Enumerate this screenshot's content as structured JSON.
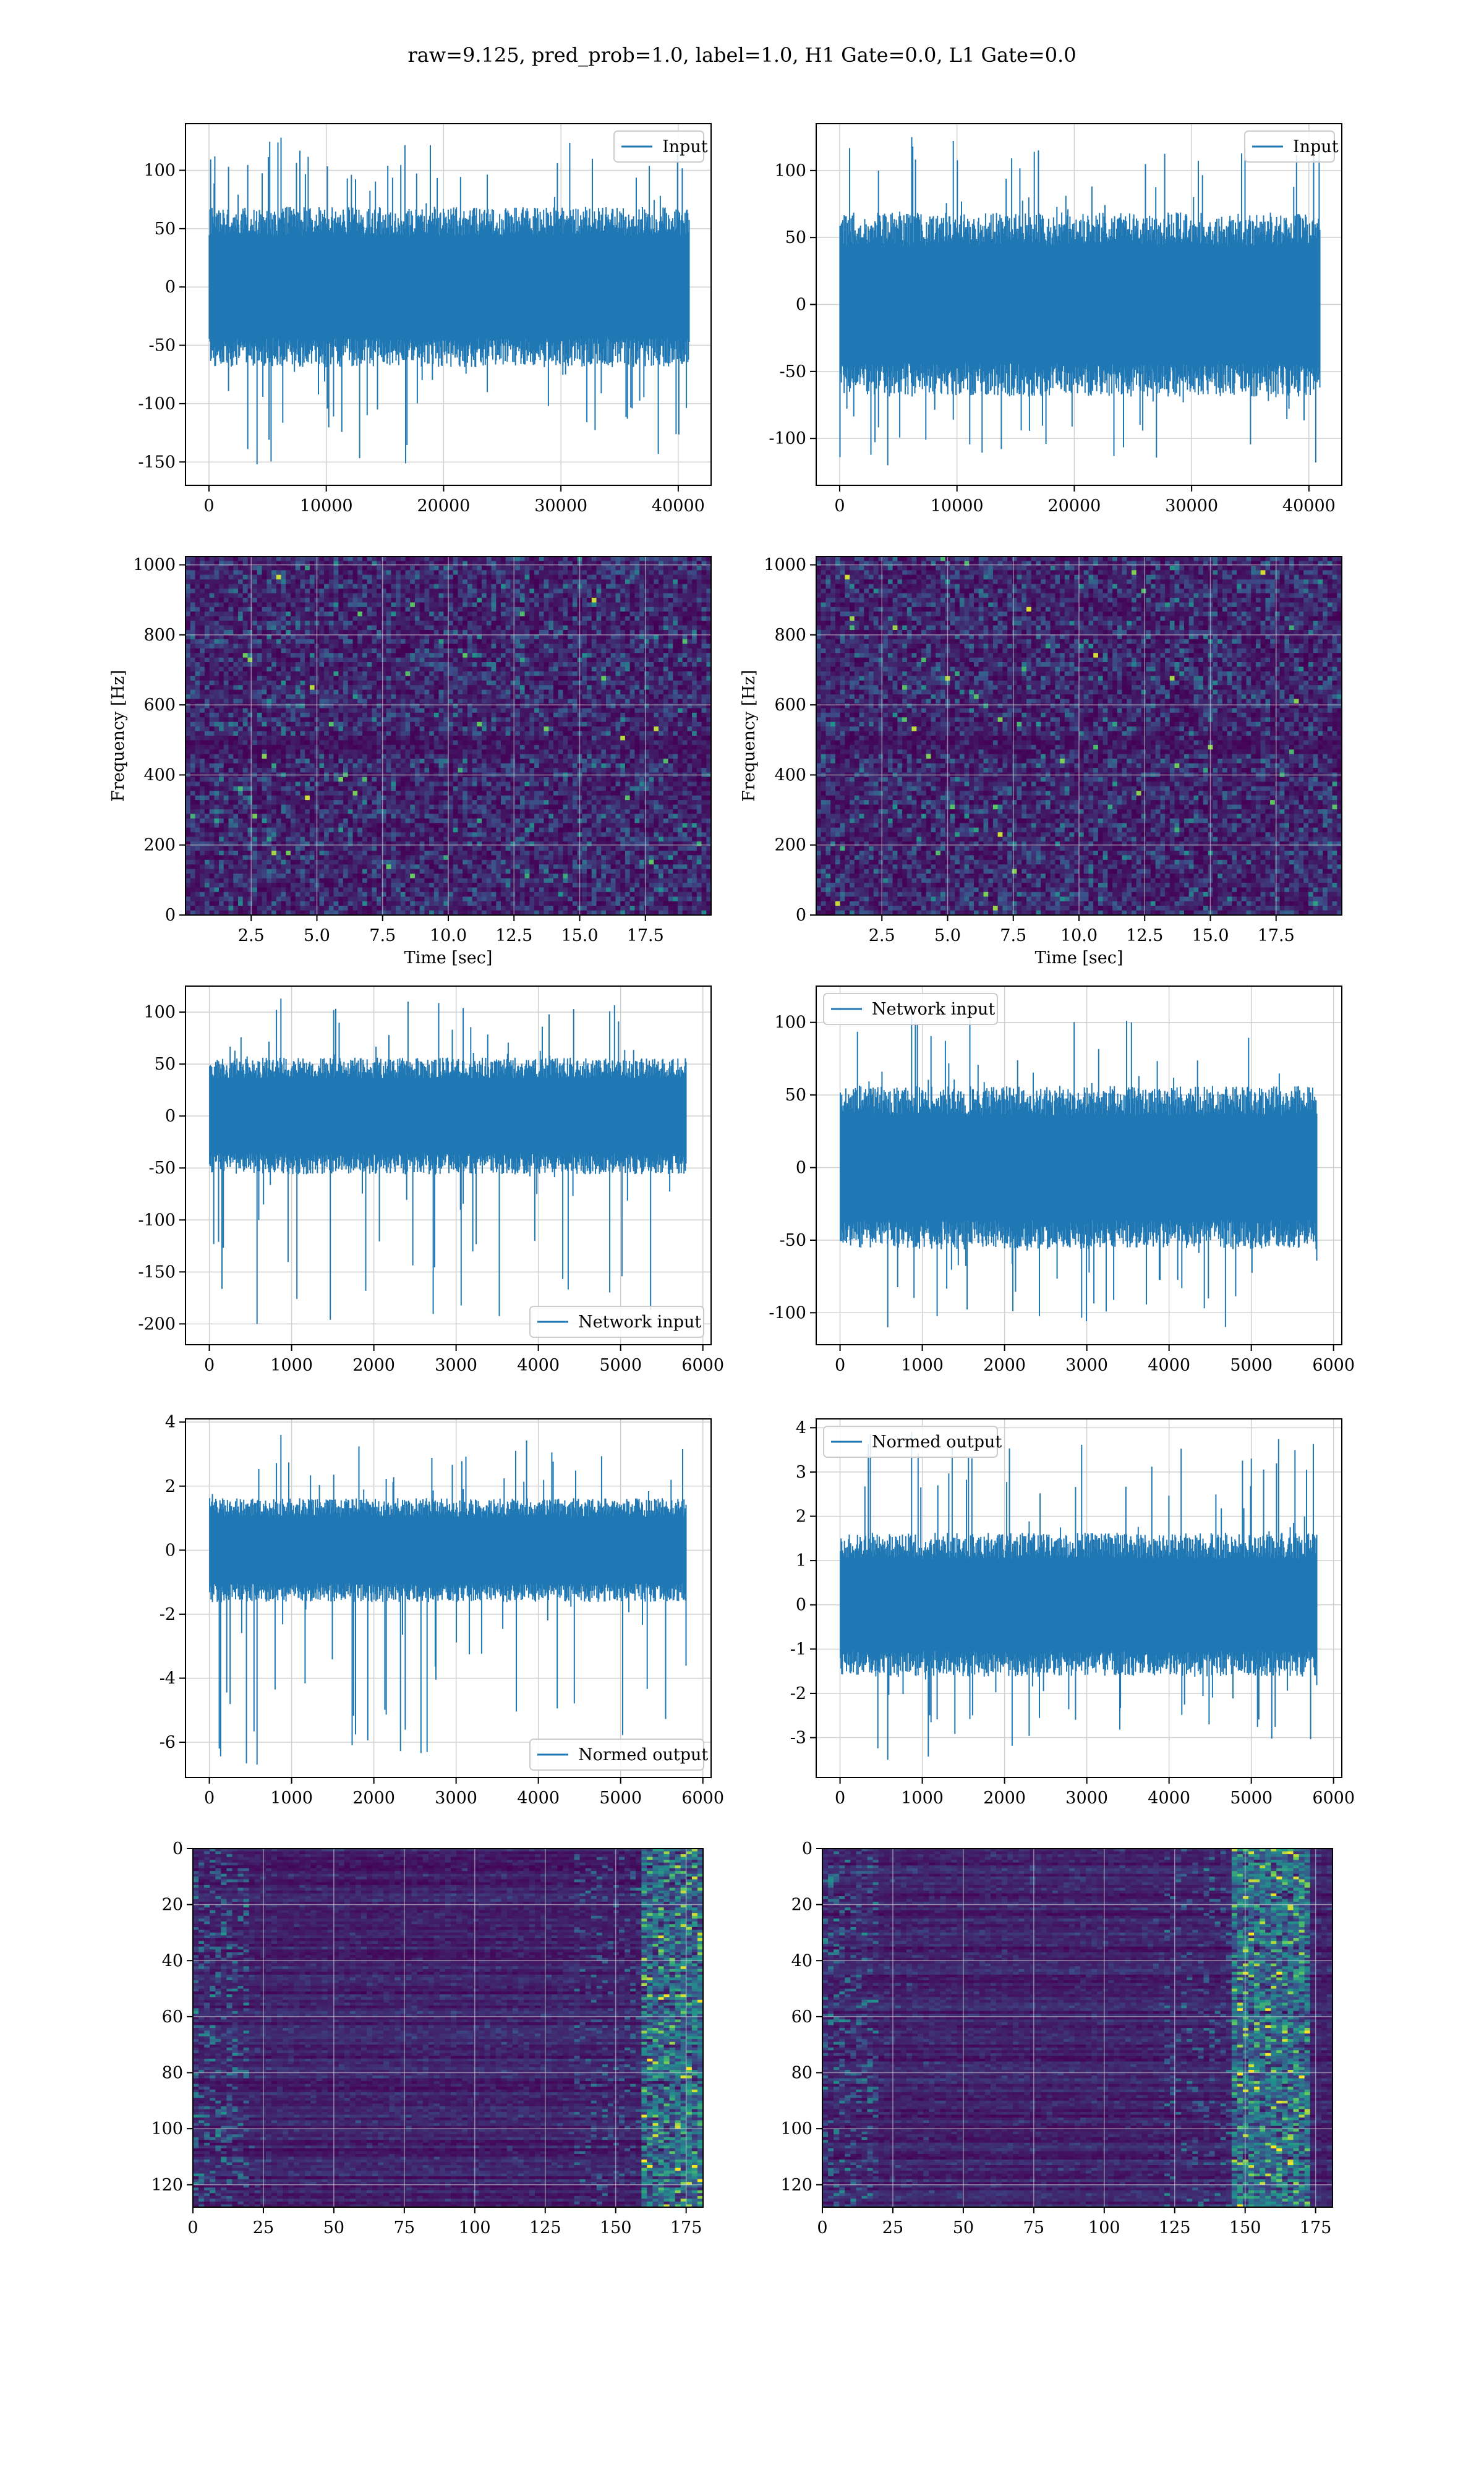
{
  "title": "raw=9.125, pred_prob=1.0, label=1.0, H1 Gate=0.0, L1 Gate=0.0",
  "colors": {
    "series": "#1f77b4",
    "grid": "#d0d0d0",
    "heat_low": "#440154",
    "heat_mid": "#21918c",
    "heat_high": "#fde725"
  },
  "chart_data": [
    {
      "type": "line",
      "xlim": [
        -2000,
        42800
      ],
      "ylim": [
        -170,
        140
      ],
      "xticks": [
        0,
        10000,
        20000,
        30000,
        40000
      ],
      "yticks": [
        -150,
        -100,
        -50,
        0,
        50,
        100
      ],
      "legend": [
        "Input"
      ],
      "legend_loc": "upper right",
      "grid": true,
      "n_points": 40960,
      "envelope": {
        "bulk_low": -55,
        "bulk_high": 55,
        "spike_min": -152,
        "spike_max": 128
      }
    },
    {
      "type": "line",
      "xlim": [
        -2000,
        42800
      ],
      "ylim": [
        -135,
        135
      ],
      "xticks": [
        0,
        10000,
        20000,
        30000,
        40000
      ],
      "yticks": [
        -100,
        -50,
        0,
        50,
        100
      ],
      "legend": [
        "Input"
      ],
      "legend_loc": "upper right",
      "grid": true,
      "n_points": 40960,
      "envelope": {
        "bulk_low": -55,
        "bulk_high": 55,
        "spike_min": -120,
        "spike_max": 125
      }
    },
    {
      "type": "heatmap",
      "xlabel": "Time [sec]",
      "ylabel": "Frequency [Hz]",
      "xlim": [
        0,
        20
      ],
      "ylim": [
        0,
        1024
      ],
      "xticks": [
        "2.5",
        "5.0",
        "7.5",
        "10.0",
        "12.5",
        "15.0",
        "17.5"
      ],
      "yticks": [
        "0",
        "200",
        "400",
        "600",
        "800",
        "1000"
      ],
      "grid": true,
      "colormap": "viridis"
    },
    {
      "type": "heatmap",
      "xlabel": "Time [sec]",
      "ylabel": "Frequency [Hz]",
      "xlim": [
        0,
        20
      ],
      "ylim": [
        0,
        1024
      ],
      "xticks": [
        "2.5",
        "5.0",
        "7.5",
        "10.0",
        "12.5",
        "15.0",
        "17.5"
      ],
      "yticks": [
        "0",
        "200",
        "400",
        "600",
        "800",
        "1000"
      ],
      "grid": true,
      "colormap": "viridis"
    },
    {
      "type": "line",
      "xlim": [
        -290,
        6100
      ],
      "ylim": [
        -220,
        125
      ],
      "xticks": [
        0,
        1000,
        2000,
        3000,
        4000,
        5000,
        6000
      ],
      "yticks": [
        -200,
        -150,
        -100,
        -50,
        0,
        50,
        100
      ],
      "legend": [
        "Network input"
      ],
      "legend_loc": "lower right",
      "grid": true,
      "n_points": 5800,
      "envelope": {
        "bulk_low": -45,
        "bulk_high": 45,
        "spike_min": -200,
        "spike_max": 113
      }
    },
    {
      "type": "line",
      "xlim": [
        -290,
        6100
      ],
      "ylim": [
        -122,
        125
      ],
      "xticks": [
        0,
        1000,
        2000,
        3000,
        4000,
        5000,
        6000
      ],
      "yticks": [
        -100,
        -50,
        0,
        50,
        100
      ],
      "legend": [
        "Network input"
      ],
      "legend_loc": "upper left",
      "grid": true,
      "n_points": 5800,
      "envelope": {
        "bulk_low": -45,
        "bulk_high": 45,
        "spike_min": -110,
        "spike_max": 105
      }
    },
    {
      "type": "line",
      "xlim": [
        -290,
        6100
      ],
      "ylim": [
        -7.1,
        4.1
      ],
      "xticks": [
        0,
        1000,
        2000,
        3000,
        4000,
        5000,
        6000
      ],
      "yticks": [
        -6,
        -4,
        -2,
        0,
        2,
        4
      ],
      "legend": [
        "Normed output"
      ],
      "legend_loc": "lower right",
      "grid": true,
      "n_points": 5800,
      "envelope": {
        "bulk_low": -1.3,
        "bulk_high": 1.3,
        "spike_min": -6.7,
        "spike_max": 3.6
      }
    },
    {
      "type": "line",
      "xlim": [
        -290,
        6100
      ],
      "ylim": [
        -3.9,
        4.2
      ],
      "xticks": [
        0,
        1000,
        2000,
        3000,
        4000,
        5000,
        6000
      ],
      "yticks": [
        -3,
        -2,
        -1,
        0,
        1,
        2,
        3,
        4
      ],
      "legend": [
        "Normed output"
      ],
      "legend_loc": "upper left",
      "grid": true,
      "n_points": 5800,
      "envelope": {
        "bulk_low": -1.3,
        "bulk_high": 1.3,
        "spike_min": -3.5,
        "spike_max": 3.9
      }
    },
    {
      "type": "heatmap",
      "xlim": [
        0,
        181
      ],
      "ylim": [
        128,
        0
      ],
      "xticks": [
        0,
        25,
        50,
        75,
        100,
        125,
        150,
        175
      ],
      "yticks": [
        0,
        20,
        40,
        60,
        80,
        100,
        120
      ],
      "grid": true,
      "colormap": "viridis",
      "hot_columns": [
        160,
        181
      ]
    },
    {
      "type": "heatmap",
      "xlim": [
        0,
        181
      ],
      "ylim": [
        128,
        0
      ],
      "xticks": [
        0,
        25,
        50,
        75,
        100,
        125,
        150,
        175
      ],
      "yticks": [
        0,
        20,
        40,
        60,
        80,
        100,
        120
      ],
      "grid": true,
      "colormap": "viridis",
      "hot_columns": [
        145,
        172
      ]
    }
  ]
}
